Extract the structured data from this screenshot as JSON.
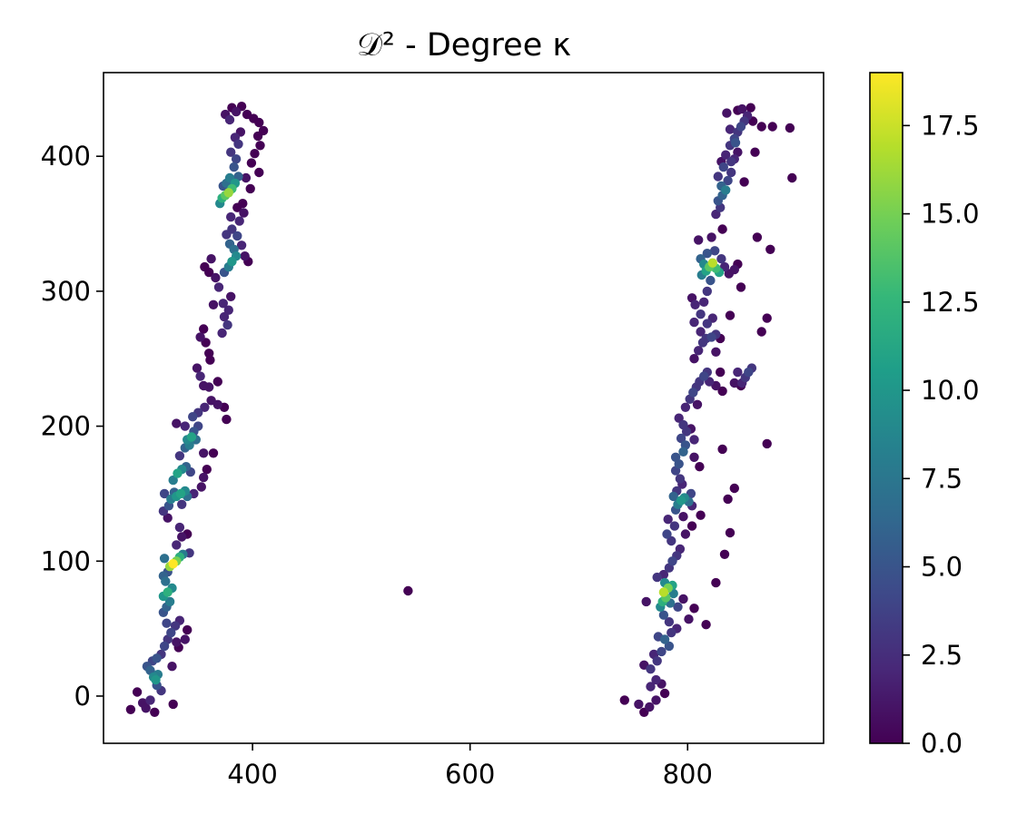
{
  "chart_data": {
    "type": "scatter",
    "title": "𝒟² - Degree κ",
    "xlabel": "",
    "ylabel": "",
    "xlim": [
      263,
      925
    ],
    "ylim": [
      -35,
      462
    ],
    "xticks": [
      400,
      600,
      800
    ],
    "yticks": [
      0,
      100,
      200,
      300,
      400
    ],
    "grid": false,
    "colorbar": {
      "colormap": "viridis",
      "range": [
        0,
        19
      ],
      "ticks": [
        0.0,
        2.5,
        5.0,
        7.5,
        10.0,
        12.5,
        15.0,
        17.5
      ],
      "tick_labels": [
        "0.0",
        "2.5",
        "5.0",
        "7.5",
        "10.0",
        "12.5",
        "15.0",
        "17.5"
      ],
      "color_stops": [
        "#440154",
        "#482878",
        "#3e4989",
        "#31688e",
        "#26828e",
        "#1f9e89",
        "#35b779",
        "#6ece58",
        "#b5de2b",
        "#fde725"
      ]
    },
    "points": [
      [
        288,
        -10,
        0
      ],
      [
        294,
        3,
        0
      ],
      [
        299,
        -5,
        1
      ],
      [
        302,
        -9,
        1
      ],
      [
        306,
        -3,
        2
      ],
      [
        310,
        -12,
        0
      ],
      [
        327,
        -6,
        0
      ],
      [
        303,
        22,
        5
      ],
      [
        306,
        19,
        6
      ],
      [
        309,
        14,
        9
      ],
      [
        311,
        12,
        10
      ],
      [
        313,
        16,
        8
      ],
      [
        312,
        8,
        5
      ],
      [
        316,
        4,
        3
      ],
      [
        308,
        26,
        4
      ],
      [
        312,
        28,
        5
      ],
      [
        316,
        31,
        3
      ],
      [
        319,
        37,
        4
      ],
      [
        322,
        42,
        3
      ],
      [
        325,
        47,
        4
      ],
      [
        329,
        52,
        3
      ],
      [
        333,
        56,
        2
      ],
      [
        321,
        54,
        4
      ],
      [
        340,
        49,
        0
      ],
      [
        338,
        42,
        1
      ],
      [
        330,
        40,
        1
      ],
      [
        326,
        22,
        1
      ],
      [
        332,
        36,
        0
      ],
      [
        318,
        62,
        5
      ],
      [
        321,
        66,
        6
      ],
      [
        324,
        70,
        8
      ],
      [
        318,
        74,
        10
      ],
      [
        322,
        77,
        12
      ],
      [
        326,
        80,
        9
      ],
      [
        320,
        85,
        7
      ],
      [
        318,
        89,
        6
      ],
      [
        322,
        92,
        5
      ],
      [
        324,
        96,
        16
      ],
      [
        327,
        98,
        19
      ],
      [
        330,
        100,
        15
      ],
      [
        333,
        103,
        12
      ],
      [
        319,
        102,
        7
      ],
      [
        336,
        105,
        8
      ],
      [
        342,
        106,
        3
      ],
      [
        330,
        112,
        2
      ],
      [
        335,
        118,
        1
      ],
      [
        340,
        120,
        0
      ],
      [
        333,
        125,
        2
      ],
      [
        322,
        132,
        1
      ],
      [
        318,
        137,
        3
      ],
      [
        323,
        141,
        5
      ],
      [
        325,
        146,
        8
      ],
      [
        330,
        148,
        10
      ],
      [
        334,
        150,
        11
      ],
      [
        338,
        152,
        9
      ],
      [
        340,
        148,
        7
      ],
      [
        328,
        151,
        6
      ],
      [
        346,
        150,
        2
      ],
      [
        353,
        155,
        1
      ],
      [
        335,
        142,
        3
      ],
      [
        319,
        150,
        4
      ],
      [
        327,
        160,
        8
      ],
      [
        331,
        165,
        11
      ],
      [
        335,
        168,
        9
      ],
      [
        339,
        170,
        6
      ],
      [
        343,
        166,
        4
      ],
      [
        355,
        162,
        1
      ],
      [
        358,
        168,
        0
      ],
      [
        333,
        178,
        3
      ],
      [
        338,
        184,
        6
      ],
      [
        340,
        190,
        9
      ],
      [
        344,
        192,
        11
      ],
      [
        342,
        186,
        8
      ],
      [
        348,
        190,
        7
      ],
      [
        346,
        196,
        5
      ],
      [
        350,
        200,
        4
      ],
      [
        338,
        200,
        2
      ],
      [
        330,
        202,
        1
      ],
      [
        355,
        180,
        1
      ],
      [
        364,
        180,
        0
      ],
      [
        345,
        207,
        4
      ],
      [
        350,
        210,
        3
      ],
      [
        356,
        214,
        2
      ],
      [
        362,
        219,
        1
      ],
      [
        368,
        216,
        1
      ],
      [
        374,
        214,
        0
      ],
      [
        376,
        205,
        0
      ],
      [
        360,
        229,
        1
      ],
      [
        368,
        233,
        0
      ],
      [
        355,
        230,
        1
      ],
      [
        352,
        237,
        2
      ],
      [
        349,
        243,
        1
      ],
      [
        361,
        249,
        0
      ],
      [
        360,
        254,
        0
      ],
      [
        357,
        262,
        0
      ],
      [
        352,
        266,
        1
      ],
      [
        355,
        272,
        0
      ],
      [
        372,
        269,
        2
      ],
      [
        377,
        275,
        3
      ],
      [
        374,
        281,
        2
      ],
      [
        378,
        286,
        2
      ],
      [
        373,
        291,
        2
      ],
      [
        364,
        290,
        1
      ],
      [
        380,
        296,
        1
      ],
      [
        369,
        303,
        2
      ],
      [
        366,
        310,
        1
      ],
      [
        360,
        314,
        0
      ],
      [
        356,
        318,
        0
      ],
      [
        362,
        324,
        1
      ],
      [
        374,
        314,
        5
      ],
      [
        378,
        318,
        8
      ],
      [
        381,
        322,
        10
      ],
      [
        385,
        326,
        9
      ],
      [
        383,
        331,
        7
      ],
      [
        379,
        335,
        6
      ],
      [
        386,
        341,
        4
      ],
      [
        381,
        346,
        3
      ],
      [
        376,
        342,
        3
      ],
      [
        390,
        334,
        2
      ],
      [
        393,
        326,
        1
      ],
      [
        396,
        322,
        0
      ],
      [
        388,
        352,
        2
      ],
      [
        392,
        358,
        1
      ],
      [
        380,
        355,
        2
      ],
      [
        386,
        362,
        0
      ],
      [
        370,
        365,
        9
      ],
      [
        372,
        369,
        12
      ],
      [
        375,
        371,
        14
      ],
      [
        378,
        373,
        16
      ],
      [
        381,
        376,
        13
      ],
      [
        384,
        380,
        10
      ],
      [
        379,
        384,
        8
      ],
      [
        376,
        380,
        7
      ],
      [
        387,
        385,
        6
      ],
      [
        373,
        378,
        5
      ],
      [
        383,
        392,
        5
      ],
      [
        385,
        398,
        4
      ],
      [
        380,
        403,
        3
      ],
      [
        387,
        409,
        3
      ],
      [
        384,
        414,
        2
      ],
      [
        389,
        418,
        1
      ],
      [
        379,
        427,
        2
      ],
      [
        375,
        431,
        1
      ],
      [
        385,
        433,
        1
      ],
      [
        381,
        436,
        0
      ],
      [
        390,
        437,
        0
      ],
      [
        395,
        431,
        0
      ],
      [
        401,
        428,
        0
      ],
      [
        406,
        425,
        0
      ],
      [
        405,
        415,
        0
      ],
      [
        410,
        419,
        0
      ],
      [
        407,
        408,
        0
      ],
      [
        402,
        402,
        0
      ],
      [
        399,
        395,
        0
      ],
      [
        406,
        388,
        0
      ],
      [
        394,
        384,
        1
      ],
      [
        398,
        376,
        0
      ],
      [
        391,
        365,
        0
      ],
      [
        543,
        78,
        0
      ],
      [
        742,
        -3,
        0
      ],
      [
        755,
        -6,
        1
      ],
      [
        760,
        -12,
        0
      ],
      [
        765,
        -8,
        1
      ],
      [
        771,
        -3,
        1
      ],
      [
        779,
        2,
        0
      ],
      [
        766,
        7,
        2
      ],
      [
        771,
        12,
        2
      ],
      [
        776,
        9,
        1
      ],
      [
        766,
        20,
        3
      ],
      [
        760,
        23,
        1
      ],
      [
        772,
        26,
        3
      ],
      [
        769,
        31,
        2
      ],
      [
        776,
        33,
        4
      ],
      [
        783,
        37,
        5
      ],
      [
        779,
        42,
        6
      ],
      [
        773,
        44,
        4
      ],
      [
        785,
        47,
        3
      ],
      [
        790,
        50,
        2
      ],
      [
        783,
        55,
        3
      ],
      [
        778,
        60,
        5
      ],
      [
        775,
        66,
        9
      ],
      [
        777,
        70,
        12
      ],
      [
        780,
        73,
        14
      ],
      [
        778,
        77,
        17
      ],
      [
        782,
        80,
        15
      ],
      [
        786,
        82,
        11
      ],
      [
        779,
        84,
        9
      ],
      [
        787,
        76,
        8
      ],
      [
        784,
        69,
        7
      ],
      [
        791,
        66,
        4
      ],
      [
        801,
        57,
        1
      ],
      [
        806,
        65,
        0
      ],
      [
        796,
        72,
        1
      ],
      [
        772,
        88,
        3
      ],
      [
        778,
        90,
        2
      ],
      [
        762,
        70,
        1
      ],
      [
        783,
        95,
        3
      ],
      [
        786,
        100,
        4
      ],
      [
        790,
        104,
        3
      ],
      [
        793,
        109,
        2
      ],
      [
        785,
        115,
        3
      ],
      [
        781,
        120,
        4
      ],
      [
        788,
        126,
        3
      ],
      [
        782,
        131,
        2
      ],
      [
        796,
        133,
        1
      ],
      [
        798,
        120,
        1
      ],
      [
        804,
        126,
        0
      ],
      [
        789,
        138,
        5
      ],
      [
        791,
        142,
        8
      ],
      [
        794,
        145,
        10
      ],
      [
        797,
        147,
        9
      ],
      [
        801,
        144,
        7
      ],
      [
        787,
        148,
        6
      ],
      [
        803,
        150,
        4
      ],
      [
        790,
        152,
        3
      ],
      [
        795,
        157,
        2
      ],
      [
        804,
        141,
        2
      ],
      [
        812,
        134,
        0
      ],
      [
        837,
        146,
        0
      ],
      [
        843,
        154,
        0
      ],
      [
        839,
        121,
        0
      ],
      [
        834,
        105,
        0
      ],
      [
        826,
        84,
        0
      ],
      [
        817,
        53,
        0
      ],
      [
        793,
        161,
        3
      ],
      [
        789,
        167,
        4
      ],
      [
        792,
        172,
        5
      ],
      [
        789,
        177,
        5
      ],
      [
        796,
        181,
        6
      ],
      [
        798,
        186,
        5
      ],
      [
        794,
        191,
        4
      ],
      [
        799,
        196,
        3
      ],
      [
        796,
        201,
        3
      ],
      [
        792,
        206,
        2
      ],
      [
        806,
        190,
        2
      ],
      [
        803,
        198,
        1
      ],
      [
        811,
        170,
        0
      ],
      [
        806,
        177,
        1
      ],
      [
        832,
        183,
        0
      ],
      [
        798,
        214,
        2
      ],
      [
        802,
        220,
        3
      ],
      [
        805,
        225,
        4
      ],
      [
        808,
        229,
        3
      ],
      [
        811,
        233,
        3
      ],
      [
        815,
        237,
        4
      ],
      [
        818,
        240,
        3
      ],
      [
        820,
        233,
        2
      ],
      [
        826,
        230,
        1
      ],
      [
        832,
        226,
        0
      ],
      [
        830,
        240,
        0
      ],
      [
        809,
        216,
        1
      ],
      [
        806,
        250,
        1
      ],
      [
        810,
        256,
        2
      ],
      [
        814,
        262,
        3
      ],
      [
        817,
        265,
        3
      ],
      [
        822,
        266,
        4
      ],
      [
        826,
        268,
        3
      ],
      [
        812,
        270,
        2
      ],
      [
        818,
        276,
        3
      ],
      [
        823,
        280,
        2
      ],
      [
        806,
        277,
        2
      ],
      [
        812,
        283,
        3
      ],
      [
        807,
        290,
        2
      ],
      [
        815,
        292,
        2
      ],
      [
        804,
        295,
        1
      ],
      [
        826,
        255,
        1
      ],
      [
        830,
        265,
        0
      ],
      [
        839,
        282,
        0
      ],
      [
        850,
        232,
        2
      ],
      [
        853,
        236,
        3
      ],
      [
        856,
        240,
        4
      ],
      [
        859,
        243,
        3
      ],
      [
        846,
        240,
        2
      ],
      [
        843,
        232,
        1
      ],
      [
        849,
        230,
        0
      ],
      [
        868,
        270,
        0
      ],
      [
        873,
        280,
        0
      ],
      [
        864,
        340,
        0
      ],
      [
        818,
        300,
        3
      ],
      [
        821,
        308,
        5
      ],
      [
        813,
        312,
        8
      ],
      [
        817,
        315,
        11
      ],
      [
        820,
        318,
        14
      ],
      [
        823,
        321,
        17
      ],
      [
        826,
        317,
        13
      ],
      [
        829,
        314,
        11
      ],
      [
        815,
        320,
        9
      ],
      [
        812,
        324,
        6
      ],
      [
        818,
        328,
        5
      ],
      [
        825,
        330,
        4
      ],
      [
        831,
        324,
        3
      ],
      [
        834,
        318,
        2
      ],
      [
        838,
        313,
        1
      ],
      [
        843,
        316,
        1
      ],
      [
        849,
        303,
        0
      ],
      [
        846,
        320,
        0
      ],
      [
        810,
        338,
        1
      ],
      [
        822,
        340,
        1
      ],
      [
        832,
        346,
        0
      ],
      [
        876,
        331,
        0
      ],
      [
        873,
        187,
        0
      ],
      [
        826,
        357,
        2
      ],
      [
        830,
        362,
        3
      ],
      [
        828,
        367,
        5
      ],
      [
        832,
        371,
        6
      ],
      [
        835,
        375,
        8
      ],
      [
        831,
        378,
        6
      ],
      [
        837,
        382,
        4
      ],
      [
        828,
        385,
        3
      ],
      [
        840,
        388,
        3
      ],
      [
        833,
        392,
        4
      ],
      [
        840,
        396,
        3
      ],
      [
        835,
        401,
        2
      ],
      [
        843,
        398,
        2
      ],
      [
        846,
        403,
        1
      ],
      [
        831,
        396,
        1
      ],
      [
        852,
        381,
        0
      ],
      [
        862,
        403,
        0
      ],
      [
        839,
        408,
        3
      ],
      [
        843,
        413,
        4
      ],
      [
        846,
        418,
        3
      ],
      [
        849,
        422,
        4
      ],
      [
        852,
        426,
        3
      ],
      [
        855,
        430,
        2
      ],
      [
        850,
        435,
        1
      ],
      [
        858,
        436,
        0
      ],
      [
        846,
        434,
        0
      ],
      [
        836,
        432,
        1
      ],
      [
        860,
        426,
        0
      ],
      [
        868,
        422,
        0
      ],
      [
        878,
        422,
        0
      ],
      [
        894,
        421,
        0
      ],
      [
        896,
        384,
        0
      ],
      [
        839,
        420,
        2
      ],
      [
        844,
        410,
        5
      ]
    ]
  }
}
